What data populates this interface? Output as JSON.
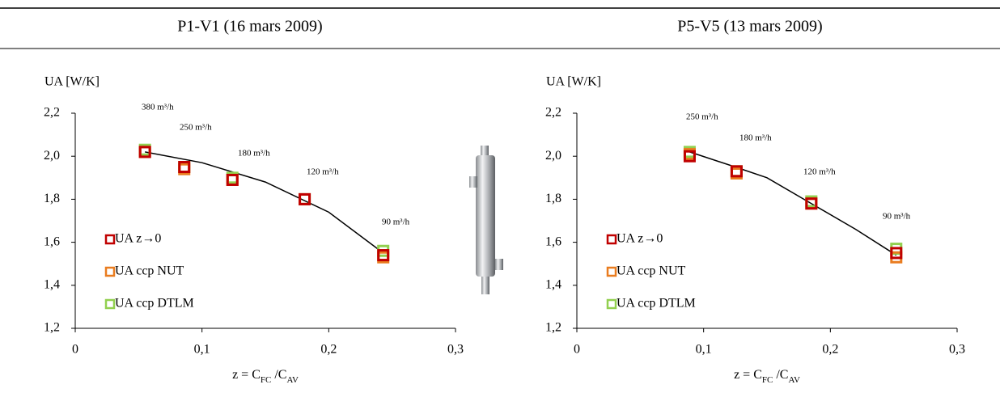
{
  "chart_data": [
    {
      "type": "scatter",
      "title": "P1-V1 (16 mars 2009)",
      "ylabel": "UA [W/K]",
      "xlabel": [
        "z = C",
        "FC",
        " /C",
        "AV"
      ],
      "xlim": [
        0,
        0.3
      ],
      "ylim": [
        1.2,
        2.2
      ],
      "xticks": [
        0,
        {
          "value": 0.1,
          "label": "0,1"
        },
        {
          "value": 0.2,
          "label": "0,2"
        },
        {
          "value": 0.3,
          "label": "0,3"
        }
      ],
      "yticks": [
        {
          "value": 1.2,
          "label": "1,2"
        },
        {
          "value": 1.4,
          "label": "1,4"
        },
        {
          "value": 1.6,
          "label": "1,6"
        },
        {
          "value": 1.8,
          "label": "1,8"
        },
        {
          "value": 2.0,
          "label": "2,0"
        },
        {
          "value": 2.2,
          "label": "2,2"
        }
      ],
      "x": [
        0.055,
        0.086,
        0.124,
        0.181,
        0.243
      ],
      "series": [
        {
          "name": "UA z→0",
          "color": "#c00000",
          "values": [
            2.02,
            1.95,
            1.89,
            1.8,
            1.54
          ]
        },
        {
          "name": "UA ccp NUT",
          "color": "#e97c1f",
          "values": [
            2.02,
            1.94,
            1.89,
            1.8,
            1.53
          ]
        },
        {
          "name": "UA ccp DTLM",
          "color": "#92d050",
          "values": [
            2.03,
            1.95,
            1.9,
            1.8,
            1.56
          ]
        }
      ],
      "trendline": {
        "x": [
          0.055,
          0.1,
          0.15,
          0.2,
          0.243
        ],
        "values": [
          2.02,
          1.97,
          1.88,
          1.74,
          1.55
        ]
      },
      "annotations": [
        "380 m³/h",
        "250 m³/h",
        "180 m³/h",
        "120 m³/h",
        "90 m³/h"
      ]
    },
    {
      "type": "scatter",
      "title": "P5-V5 (13 mars 2009)",
      "ylabel": "UA [W/K]",
      "xlabel": [
        "z = C",
        "FC",
        " /C",
        "AV"
      ],
      "xlim": [
        0,
        0.3
      ],
      "ylim": [
        1.2,
        2.2
      ],
      "xticks": [
        0,
        {
          "value": 0.1,
          "label": "0,1"
        },
        {
          "value": 0.2,
          "label": "0,2"
        },
        {
          "value": 0.3,
          "label": "0,3"
        }
      ],
      "yticks": [
        {
          "value": 1.2,
          "label": "1,2"
        },
        {
          "value": 1.4,
          "label": "1,4"
        },
        {
          "value": 1.6,
          "label": "1,6"
        },
        {
          "value": 1.8,
          "label": "1,8"
        },
        {
          "value": 2.0,
          "label": "2,0"
        },
        {
          "value": 2.2,
          "label": "2,2"
        }
      ],
      "x": [
        0.089,
        0.126,
        0.185,
        0.252
      ],
      "series": [
        {
          "name": "UA z→0",
          "color": "#c00000",
          "values": [
            2.0,
            1.93,
            1.78,
            1.55
          ]
        },
        {
          "name": "UA ccp NUT",
          "color": "#e97c1f",
          "values": [
            2.01,
            1.92,
            1.78,
            1.53
          ]
        },
        {
          "name": "UA ccp DTLM",
          "color": "#92d050",
          "values": [
            2.02,
            1.93,
            1.79,
            1.57
          ]
        }
      ],
      "trendline": {
        "x": [
          0.089,
          0.125,
          0.15,
          0.185,
          0.22,
          0.252
        ],
        "values": [
          2.02,
          1.95,
          1.9,
          1.78,
          1.66,
          1.54
        ]
      },
      "annotations": [
        "250 m³/h",
        "180 m³/h",
        "120 m³/h",
        "90 m³/h"
      ]
    }
  ]
}
